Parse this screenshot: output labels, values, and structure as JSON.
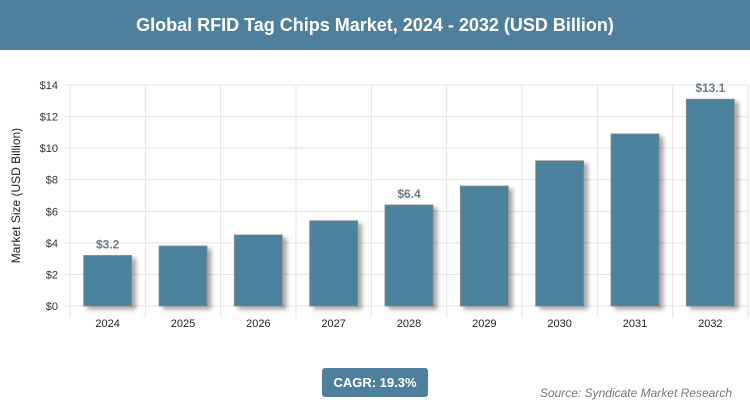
{
  "header": {
    "title": "Global RFID Tag Chips Market, 2024 - 2032 (USD Billion)"
  },
  "chart_data": {
    "type": "bar",
    "title": "Global RFID Tag Chips Market, 2024 - 2032 (USD Billion)",
    "xlabel": "",
    "ylabel": "Market Size (USD Billion)",
    "categories": [
      "2024",
      "2025",
      "2026",
      "2027",
      "2028",
      "2029",
      "2030",
      "2031",
      "2032"
    ],
    "values": [
      3.2,
      3.8,
      4.5,
      5.4,
      6.4,
      7.6,
      9.2,
      10.9,
      13.1
    ],
    "data_labels": {
      "0": "$3.2",
      "4": "$6.4",
      "8": "$13.1"
    },
    "ylim": [
      0,
      14
    ],
    "yticks": [
      0,
      2,
      4,
      6,
      8,
      10,
      12,
      14
    ],
    "ytick_labels": [
      "$0",
      "$2",
      "$4",
      "$6",
      "$8",
      "$10",
      "$12",
      "$14"
    ],
    "grid": true,
    "bar_color": "#4e829e"
  },
  "footer": {
    "cagr": "CAGR: 19.3%",
    "source": "Source: Syndicate Market Research"
  }
}
